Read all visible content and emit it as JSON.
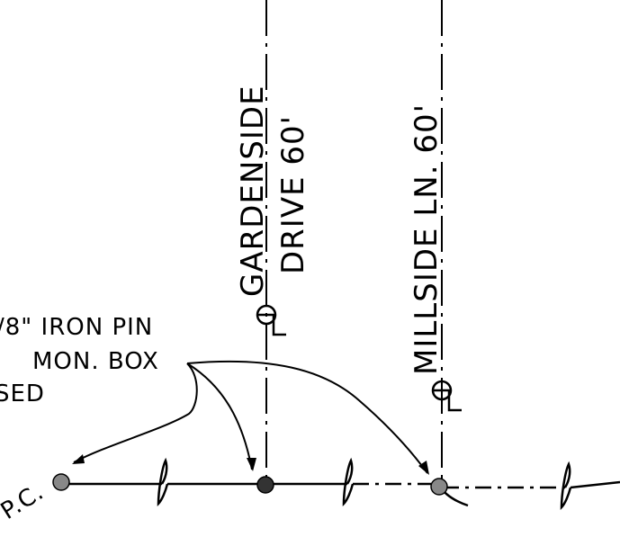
{
  "streets": {
    "gardenside": {
      "name": "GARDENSIDE",
      "subtitle": "DRIVE 60'"
    },
    "millside": {
      "name": "MILLSIDE LN. 60'"
    }
  },
  "note": {
    "line1": "/8\" IRON PIN",
    "line2": "MON. BOX",
    "line3": "SED"
  },
  "point_label": "P.C.",
  "colors": {
    "ink": "#000000",
    "monument_fill": "#333333",
    "monument_light": "#888888"
  }
}
